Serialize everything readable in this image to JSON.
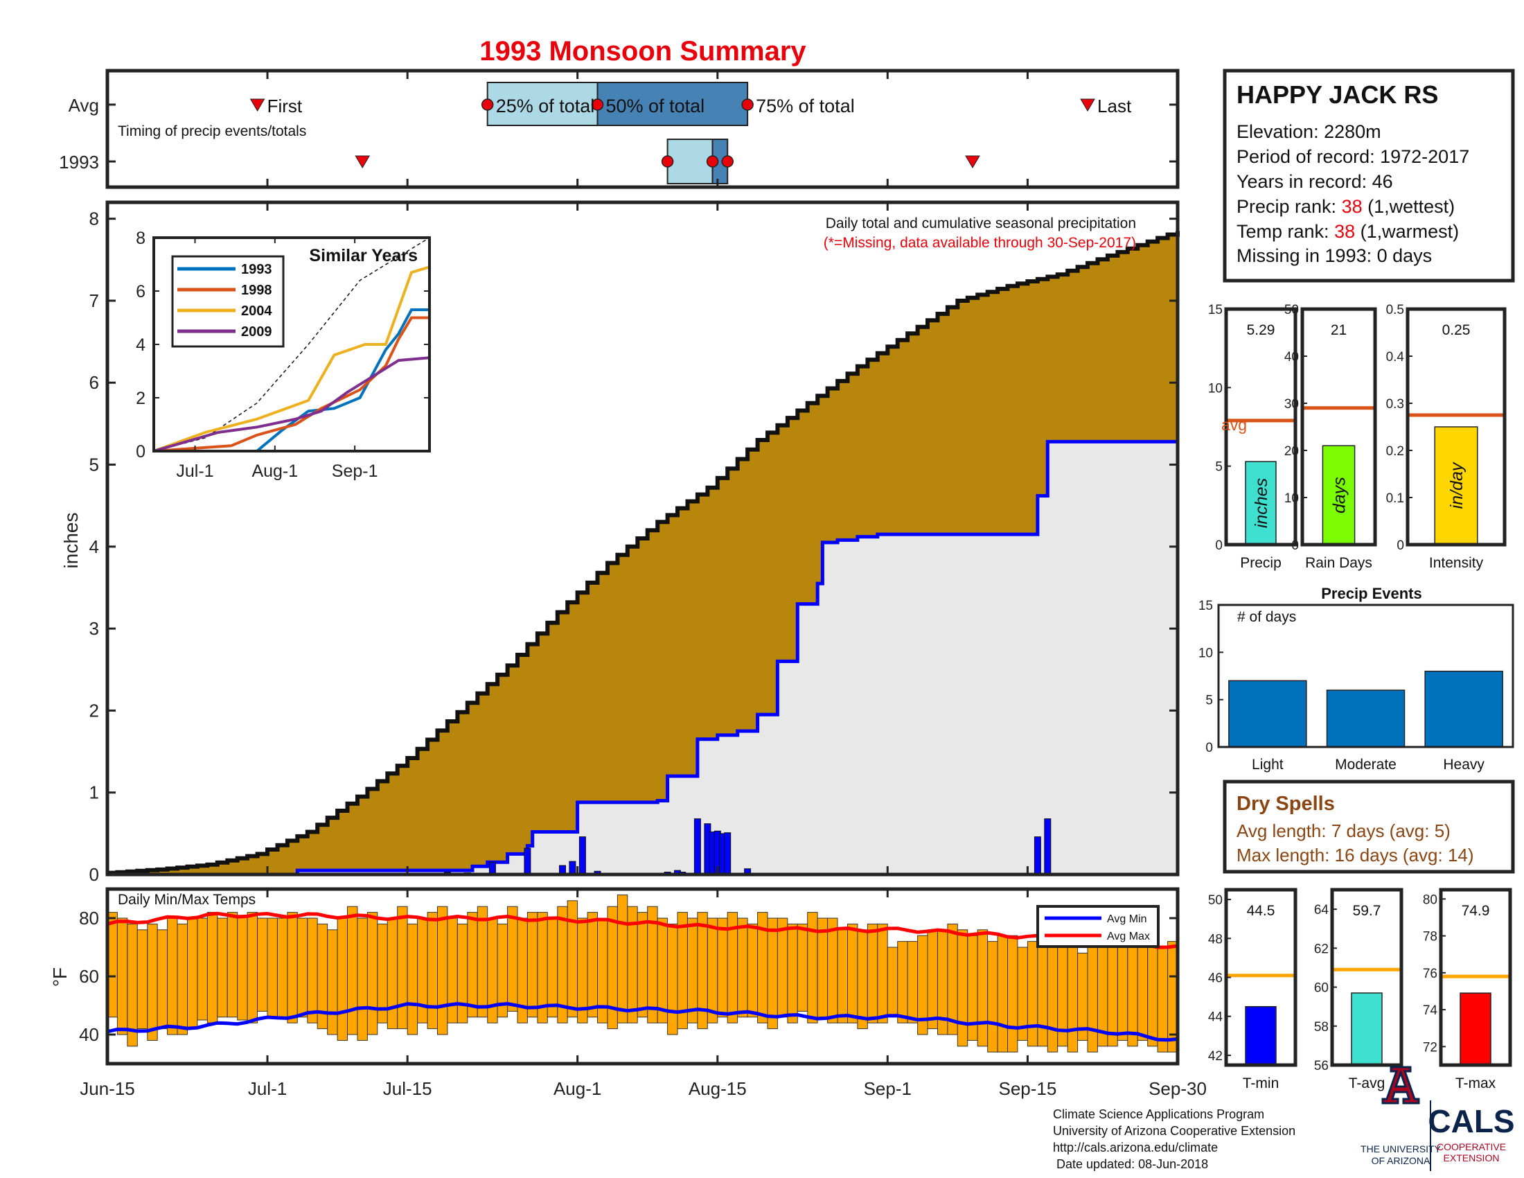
{
  "title": "1993 Monsoon Summary",
  "station": {
    "name": "HAPPY JACK RS",
    "elevation_label": "Elevation: 2280m",
    "period_label": "Period of record: 1972-2017",
    "years_label": "Years in record: 46",
    "precip_rank_prefix": "Precip rank: ",
    "precip_rank": "38",
    "precip_rank_suffix": " (1,wettest)",
    "temp_rank_prefix": "Temp rank: ",
    "temp_rank": "38",
    "temp_rank_suffix": " (1,warmest)",
    "missing_label": "Missing in 1993: 0 days"
  },
  "timing": {
    "avg_label": "Avg",
    "year_label": "1993",
    "note": "Timing of precip events/totals",
    "first_label": "First",
    "last_label": "Last",
    "p25_label": "25% of total",
    "p50_label": "50% of total",
    "p75_label": "75% of total",
    "avg_first_day": 15,
    "avg_p25_day": 38,
    "avg_p50_day": 49,
    "avg_p75_day": 64,
    "avg_last_day": 98,
    "year_first_day": 25.5,
    "year_p25_day": 56,
    "year_p50_day": 60.5,
    "year_p75_day": 62,
    "year_last_day": 86.5
  },
  "main": {
    "title": "Daily total and cumulative seasonal precipitation",
    "missing_note": "(*=Missing, data available through 30-Sep-2017)",
    "ylabel": "inches",
    "yticks": [
      "0",
      "1",
      "2",
      "3",
      "4",
      "5",
      "6",
      "7",
      "8"
    ],
    "xtick_labels": [
      "Jun-15",
      "Jul-1",
      "Jul-15",
      "Aug-1",
      "Aug-15",
      "Sep-1",
      "Sep-15",
      "Sep-30"
    ],
    "xtick_days": [
      0,
      16,
      30,
      47,
      61,
      78,
      92,
      107
    ]
  },
  "inset": {
    "title": "Similar Years",
    "yticks": [
      "0",
      "2",
      "4",
      "6",
      "8"
    ],
    "xtick_labels": [
      "Jul-1",
      "Aug-1",
      "Sep-1"
    ],
    "legend": [
      {
        "name": "1993",
        "color": "#0072BD"
      },
      {
        "name": "1998",
        "color": "#D95319"
      },
      {
        "name": "2004",
        "color": "#EDB120"
      },
      {
        "name": "2009",
        "color": "#7E2F8E"
      }
    ]
  },
  "bars_top": [
    {
      "label": "Precip",
      "value_label": "5.29",
      "unit": "inches",
      "color": "#40E0D0",
      "yticks": [
        "0",
        "5",
        "10",
        "15"
      ],
      "avg_label": "avg"
    },
    {
      "label": "Rain Days",
      "value_label": "21",
      "unit": "days",
      "color": "#7CFC00",
      "yticks": [
        "0",
        "10",
        "20",
        "30",
        "40",
        "50"
      ]
    },
    {
      "label": "Intensity",
      "value_label": "0.25",
      "unit": "in/day",
      "color": "#FFD700",
      "yticks": [
        "0",
        "0.1",
        "0.2",
        "0.3",
        "0.4",
        "0.5"
      ]
    }
  ],
  "events": {
    "title": "Precip Events",
    "ylabel": "# of days",
    "yticks": [
      "0",
      "5",
      "10",
      "15"
    ]
  },
  "dry_spells": {
    "title": "Dry Spells",
    "avg_line": "Avg length: 7 days (avg: 5)",
    "max_line": "Max length: 16 days (avg: 14)"
  },
  "temps": {
    "title": "Daily Min/Max Temps",
    "ylabel": "°F",
    "yticks": [
      "40",
      "60",
      "80"
    ],
    "legend_min": "Avg Min",
    "legend_max": "Avg Max"
  },
  "bars_temp": [
    {
      "label": "T-min",
      "value_label": "44.5",
      "color": "#0000FF",
      "yticks": [
        "42",
        "44",
        "46",
        "48",
        "50"
      ]
    },
    {
      "label": "T-avg",
      "value_label": "59.7",
      "color": "#40E0D0",
      "yticks": [
        "56",
        "58",
        "60",
        "62",
        "64"
      ]
    },
    {
      "label": "T-max",
      "value_label": "74.9",
      "color": "#FF0000",
      "yticks": [
        "72",
        "74",
        "76",
        "78",
        "80"
      ]
    }
  ],
  "footer": {
    "line1": "Climate Science Applications Program",
    "line2": "University of Arizona Cooperative Extension",
    "line3": "http://cals.arizona.edu/climate",
    "line4": " Date updated: 08-Jun-2018"
  },
  "logos": {
    "ua_line1": "THE UNIVERSITY",
    "ua_line2": "OF ARIZONA",
    "cals": "CALS",
    "cals_sub1": "COOPERATIVE",
    "cals_sub2": "EXTENSION"
  },
  "chart_data": [
    {
      "type": "area",
      "name": "cumulative precipitation",
      "x_unit": "days since Jun-15",
      "ylim": [
        0,
        8.2
      ],
      "xlim": [
        0,
        107
      ],
      "series": [
        {
          "name": "avg",
          "values_x": [
            0,
            5,
            10,
            15,
            20,
            25,
            30,
            35,
            40,
            45,
            50,
            55,
            60,
            65,
            70,
            75,
            80,
            85,
            90,
            95,
            100,
            107
          ],
          "values": [
            0.02,
            0.06,
            0.12,
            0.25,
            0.52,
            0.95,
            1.42,
            1.98,
            2.55,
            3.2,
            3.8,
            4.3,
            4.72,
            5.3,
            5.75,
            6.2,
            6.6,
            7.0,
            7.18,
            7.32,
            7.55,
            7.85
          ]
        },
        {
          "name": "1993",
          "values_x": [
            0,
            19,
            31,
            34,
            36.5,
            38,
            40,
            42,
            42.5,
            47,
            50,
            55,
            56,
            59,
            61,
            63,
            65,
            67,
            69,
            71,
            71.5,
            73,
            75,
            77,
            79,
            91,
            93,
            94,
            107
          ],
          "values": [
            0,
            0.05,
            0.05,
            0.05,
            0.1,
            0.15,
            0.25,
            0.35,
            0.52,
            0.88,
            0.88,
            0.9,
            1.2,
            1.65,
            1.7,
            1.75,
            1.95,
            2.6,
            3.3,
            3.55,
            4.05,
            4.08,
            4.12,
            4.15,
            4.15,
            4.15,
            4.62,
            5.28,
            5.28
          ]
        }
      ]
    },
    {
      "type": "bar",
      "name": "daily precipitation (inches)",
      "x": [
        19,
        31,
        34,
        36,
        37.5,
        38.5,
        42,
        45.5,
        46.5,
        47.5,
        49,
        54,
        56,
        57,
        57.5,
        59,
        60,
        60.5,
        61,
        61.5,
        62,
        64,
        93,
        94
      ],
      "values": [
        0.01,
        0.01,
        0.03,
        0.02,
        0.01,
        0.15,
        0.32,
        0.11,
        0.16,
        0.46,
        0.04,
        0.01,
        0.03,
        0.05,
        0.03,
        0.68,
        0.62,
        0.52,
        0.53,
        0.5,
        0.51,
        0.07,
        0.46,
        0.68
      ]
    },
    {
      "type": "line",
      "name": "inset cumulative (similar years)",
      "xlim": [
        0,
        107
      ],
      "ylim": [
        0,
        8
      ],
      "series": [
        {
          "name": "1993",
          "values_x": [
            0,
            40,
            50,
            60,
            70,
            80,
            90,
            95,
            100,
            107
          ],
          "values": [
            0,
            0,
            0.8,
            1.5,
            1.6,
            2.0,
            3.8,
            4.4,
            5.3,
            5.3
          ]
        },
        {
          "name": "1998",
          "values_x": [
            0,
            30,
            40,
            55,
            65,
            80,
            90,
            95,
            100,
            107
          ],
          "values": [
            0,
            0.2,
            0.6,
            1.0,
            1.6,
            2.3,
            3.2,
            4.2,
            5.0,
            5.0
          ]
        },
        {
          "name": "2004",
          "values_x": [
            0,
            20,
            40,
            60,
            70,
            82,
            90,
            100,
            107
          ],
          "values": [
            0,
            0.7,
            1.2,
            1.9,
            3.6,
            4.0,
            4.0,
            6.7,
            6.9
          ]
        },
        {
          "name": "2009",
          "values_x": [
            0,
            25,
            40,
            55,
            65,
            75,
            85,
            95,
            107
          ],
          "values": [
            0,
            0.7,
            0.9,
            1.2,
            1.5,
            2.2,
            2.8,
            3.4,
            3.5
          ]
        },
        {
          "name": "avg",
          "values_x": [
            0,
            20,
            40,
            60,
            80,
            107
          ],
          "values": [
            0,
            0.5,
            1.8,
            4.0,
            6.4,
            8.0
          ]
        }
      ]
    },
    {
      "type": "bar",
      "name": "precip summary",
      "categories": [
        "Precip",
        "Rain Days",
        "Intensity"
      ],
      "values": [
        5.29,
        21,
        0.25
      ],
      "avg": [
        7.9,
        29,
        0.275
      ],
      "ylim": [
        [
          0,
          15
        ],
        [
          0,
          50
        ],
        [
          0,
          0.5
        ]
      ]
    },
    {
      "type": "bar",
      "name": "Precip Events",
      "categories": [
        "Light",
        "Moderate",
        "Heavy"
      ],
      "values": [
        7,
        6,
        8
      ],
      "ylim": [
        0,
        15
      ]
    },
    {
      "type": "bar",
      "name": "daily min/max temps (°F)",
      "ylim": [
        30,
        90
      ],
      "avg_min_x": [
        0,
        10,
        20,
        30,
        40,
        50,
        60,
        70,
        80,
        90,
        100,
        107
      ],
      "avg_min": [
        41,
        43,
        47,
        50,
        50,
        49,
        48,
        46,
        46,
        43,
        41,
        38
      ],
      "avg_max_x": [
        0,
        10,
        20,
        30,
        40,
        50,
        60,
        70,
        80,
        90,
        100,
        107
      ],
      "avg_max": [
        78,
        81,
        81,
        80,
        80,
        79,
        77,
        76,
        76,
        74,
        72,
        70
      ],
      "tmin_approx": [
        46,
        40,
        36,
        42,
        38,
        42,
        40,
        40,
        42,
        45,
        44,
        46,
        46,
        45,
        44,
        48,
        46,
        46,
        44,
        46,
        44,
        42,
        40,
        38,
        40,
        38,
        40,
        44,
        42,
        42,
        40,
        44,
        42,
        40,
        44,
        44,
        46,
        46,
        44,
        46,
        48,
        44,
        46,
        44,
        46,
        44,
        46,
        44,
        46,
        44,
        42,
        44,
        44,
        46,
        44,
        44,
        40,
        42,
        44,
        42,
        44,
        46,
        44,
        46,
        46,
        44,
        42,
        46,
        44,
        48,
        44,
        46,
        44,
        44,
        44,
        42,
        44,
        44,
        46,
        44,
        44,
        40,
        42,
        40,
        40,
        36,
        38,
        36,
        34,
        34,
        34,
        38,
        36,
        36,
        34,
        36,
        34,
        38,
        34,
        36,
        36,
        38,
        36,
        38,
        36,
        34,
        34
      ],
      "tmax_approx": [
        82,
        80,
        78,
        76,
        78,
        76,
        80,
        78,
        80,
        80,
        82,
        80,
        82,
        81,
        82,
        80,
        80,
        80,
        82,
        80,
        80,
        78,
        76,
        80,
        84,
        80,
        82,
        78,
        80,
        84,
        78,
        80,
        82,
        84,
        80,
        78,
        82,
        84,
        80,
        78,
        84,
        80,
        82,
        82,
        80,
        84,
        86,
        80,
        82,
        80,
        84,
        88,
        84,
        82,
        84,
        80,
        78,
        82,
        80,
        82,
        80,
        80,
        82,
        80,
        78,
        82,
        80,
        80,
        78,
        78,
        82,
        80,
        80,
        76,
        78,
        76,
        78,
        78,
        70,
        72,
        72,
        74,
        76,
        76,
        78,
        76,
        74,
        76,
        72,
        74,
        74,
        70,
        72,
        74,
        74,
        70,
        72,
        68,
        70,
        72,
        74,
        70,
        72,
        70,
        70,
        70,
        72
      ]
    },
    {
      "type": "bar",
      "name": "temperature summary",
      "categories": [
        "T-min",
        "T-avg",
        "T-max"
      ],
      "values": [
        44.5,
        59.7,
        74.9
      ],
      "avg": [
        46.1,
        60.9,
        75.8
      ],
      "ylim": [
        [
          41.5,
          50.5
        ],
        [
          56,
          65
        ],
        [
          71,
          80.5
        ]
      ]
    }
  ]
}
